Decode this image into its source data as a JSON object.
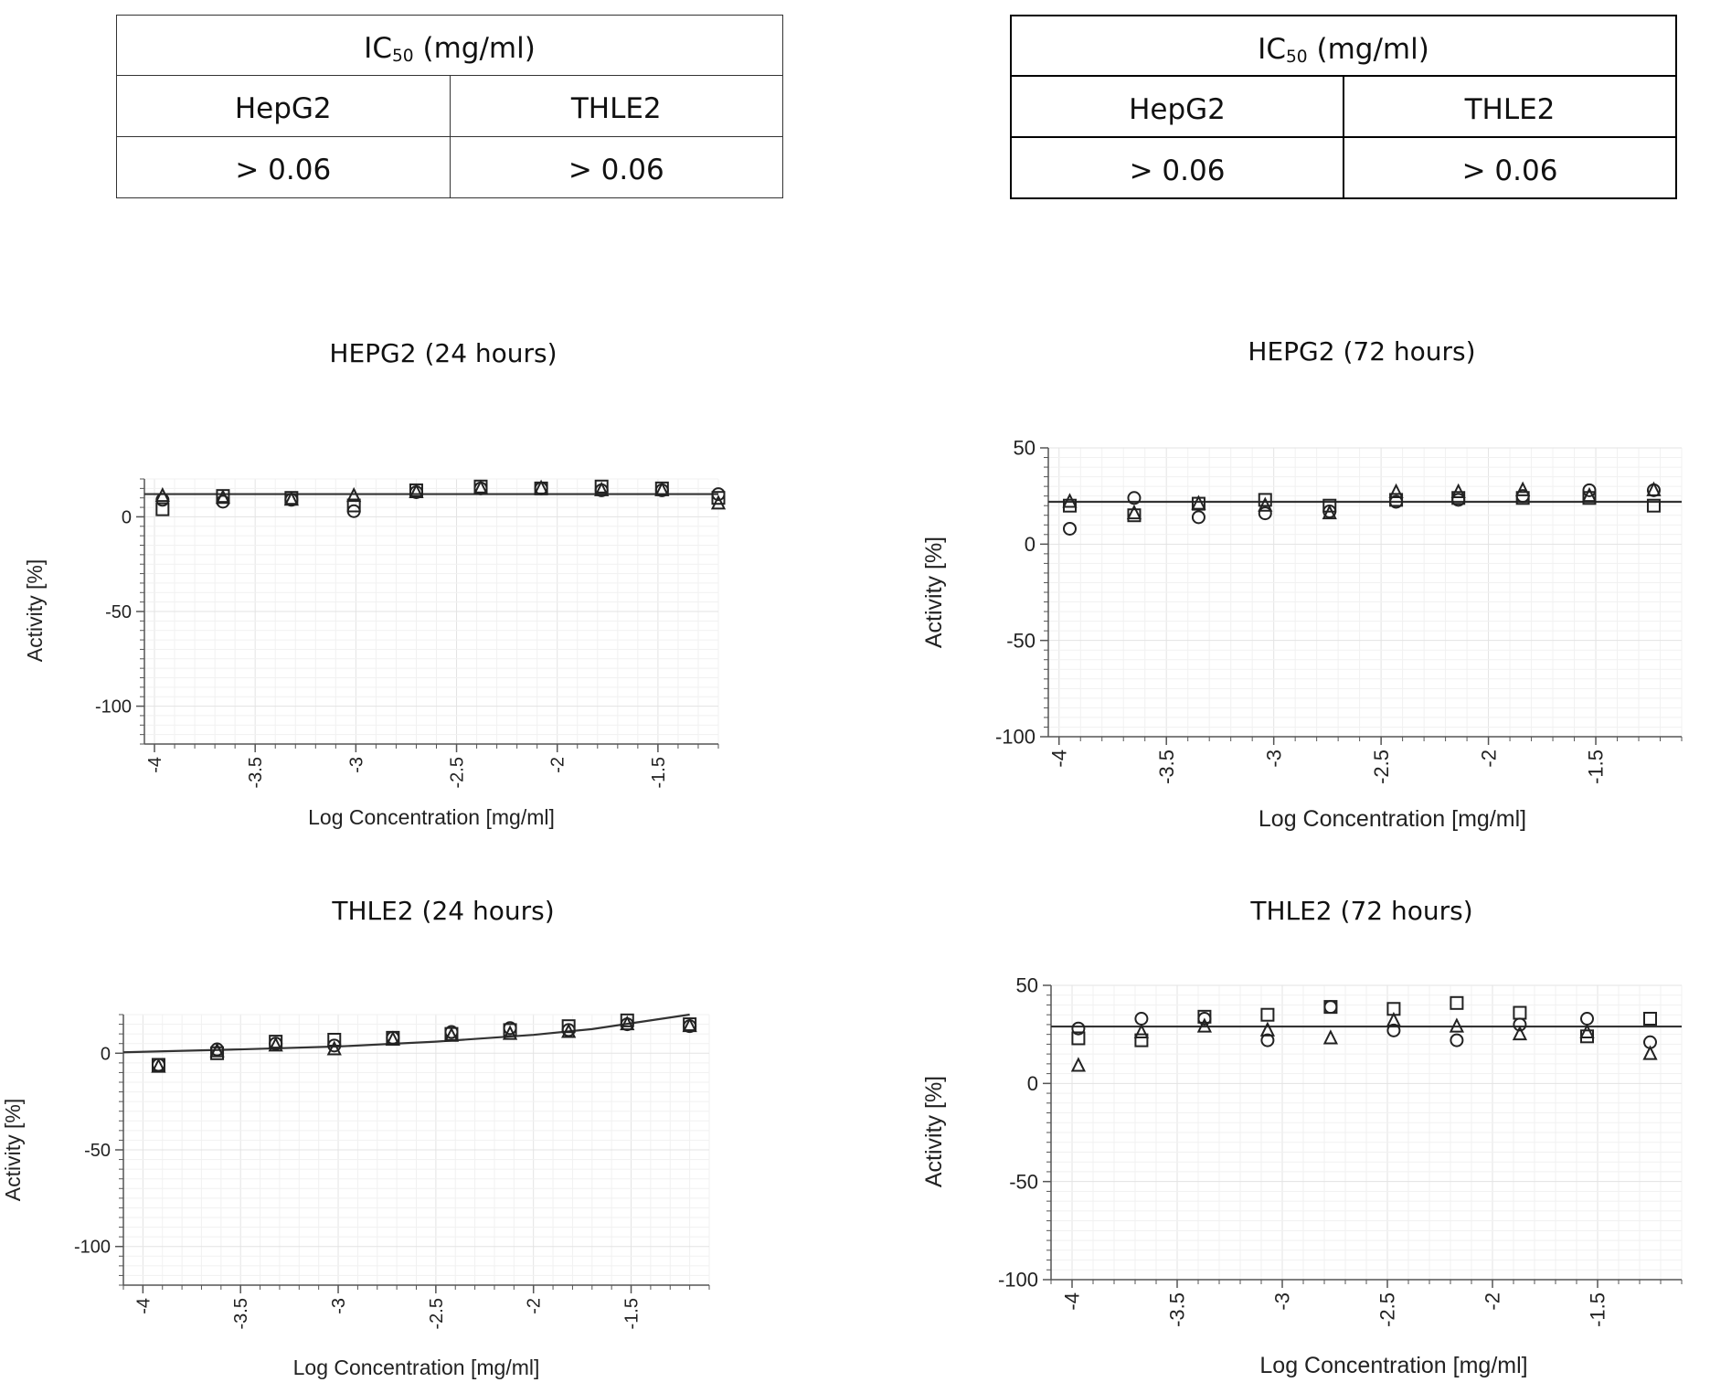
{
  "tables": [
    {
      "title_main": "IC",
      "title_sub": "50",
      "title_unit": " (mg/ml)",
      "headers": [
        "HepG2",
        "THLE2"
      ],
      "values": [
        "> 0.06",
        "> 0.06"
      ]
    },
    {
      "title_main": "IC",
      "title_sub": "50",
      "title_unit": " (mg/ml)",
      "headers": [
        "HepG2",
        "THLE2"
      ],
      "values": [
        "> 0.06",
        "> 0.06"
      ]
    }
  ],
  "chart_data": [
    {
      "type": "scatter",
      "title": "HEPG2 (24 hours)",
      "xlabel": "Log Concentration [mg/ml]",
      "ylabel": "Activity [%]",
      "xlim": [
        -4.05,
        -1.2
      ],
      "ylim": [
        -120,
        20
      ],
      "xticks": [
        "-4",
        "-3.5",
        "-3",
        "-2.5",
        "-2",
        "-1.5"
      ],
      "xtick_values": [
        -4,
        -3.5,
        -3,
        -2.5,
        -2,
        -1.5
      ],
      "yticks": [
        "0",
        "-50",
        "-100"
      ],
      "ytick_values": [
        0,
        -50,
        -100
      ],
      "fit": {
        "kind": "flat",
        "y": [
          12,
          12
        ]
      },
      "series": [
        {
          "name": "circle",
          "x": [
            -3.96,
            -3.66,
            -3.32,
            -3.01,
            -2.7,
            -2.38,
            -2.08,
            -1.78,
            -1.48,
            -1.2
          ],
          "y": [
            9,
            8,
            9,
            3,
            13,
            15,
            15,
            14,
            14,
            12
          ]
        },
        {
          "name": "square",
          "x": [
            -3.96,
            -3.66,
            -3.32,
            -3.01,
            -2.7,
            -2.38,
            -2.08,
            -1.78,
            -1.48,
            -1.2
          ],
          "y": [
            4,
            11,
            10,
            6,
            14,
            16,
            15,
            16,
            15,
            10
          ]
        },
        {
          "name": "triangle",
          "x": [
            -3.96,
            -3.66,
            -3.32,
            -3.01,
            -2.7,
            -2.38,
            -2.08,
            -1.78,
            -1.48,
            -1.2
          ],
          "y": [
            11,
            10,
            9,
            11,
            13,
            15,
            15,
            14,
            14,
            7
          ]
        }
      ]
    },
    {
      "type": "scatter",
      "title": "HEPG2 (72 hours)",
      "xlabel": "Log Concentration [mg/ml]",
      "ylabel": "Activity [%]",
      "xlim": [
        -4.05,
        -1.1
      ],
      "ylim": [
        -100,
        50
      ],
      "xticks": [
        "-4",
        "-3.5",
        "-3",
        "-2.5",
        "-2",
        "-1.5"
      ],
      "xtick_values": [
        -4,
        -3.5,
        -3,
        -2.5,
        -2,
        -1.5
      ],
      "yticks": [
        "50",
        "0",
        "-50",
        "-100"
      ],
      "ytick_values": [
        50,
        0,
        -50,
        -100
      ],
      "fit": {
        "kind": "flat",
        "y": [
          22,
          22
        ]
      },
      "series": [
        {
          "name": "circle",
          "x": [
            -3.95,
            -3.65,
            -3.35,
            -3.04,
            -2.74,
            -2.43,
            -2.14,
            -1.84,
            -1.53,
            -1.23
          ],
          "y": [
            8,
            24,
            14,
            16,
            17,
            22,
            23,
            25,
            28,
            28
          ]
        },
        {
          "name": "square",
          "x": [
            -3.95,
            -3.65,
            -3.35,
            -3.04,
            -2.74,
            -2.43,
            -2.14,
            -1.84,
            -1.53,
            -1.23
          ],
          "y": [
            20,
            15,
            21,
            23,
            20,
            23,
            24,
            24,
            24,
            20
          ]
        },
        {
          "name": "triangle",
          "x": [
            -3.95,
            -3.65,
            -3.35,
            -3.04,
            -2.74,
            -2.43,
            -2.14,
            -1.84,
            -1.53,
            -1.23
          ],
          "y": [
            22,
            16,
            21,
            20,
            16,
            27,
            27,
            28,
            25,
            28
          ]
        }
      ]
    },
    {
      "type": "scatter",
      "title": "THLE2 (24 hours)",
      "xlabel": "Log Concentration [mg/ml]",
      "ylabel": "Activity [%]",
      "xlim": [
        -4.1,
        -1.1
      ],
      "ylim": [
        -120,
        20
      ],
      "xticks": [
        "-4",
        "-3.5",
        "-3",
        "-2.5",
        "-2",
        "-1.5"
      ],
      "xtick_values": [
        -4,
        -3.5,
        -3,
        -2.5,
        -2,
        -1.5
      ],
      "yticks": [
        "0",
        "-50",
        "-100"
      ],
      "ytick_values": [
        0,
        -50,
        -100
      ],
      "fit": {
        "kind": "curve",
        "x": [
          -4.1,
          -3.5,
          -3.0,
          -2.5,
          -2.0,
          -1.7,
          -1.5,
          -1.2
        ],
        "y": [
          0.5,
          2,
          3.5,
          6,
          9.5,
          12.5,
          15.5,
          20
        ]
      },
      "series": [
        {
          "name": "circle",
          "x": [
            -3.92,
            -3.62,
            -3.32,
            -3.02,
            -2.72,
            -2.42,
            -2.12,
            -1.82,
            -1.52,
            -1.2
          ],
          "y": [
            -6,
            2,
            5,
            4,
            8,
            11,
            13,
            12,
            15,
            14
          ]
        },
        {
          "name": "square",
          "x": [
            -3.92,
            -3.62,
            -3.32,
            -3.02,
            -2.72,
            -2.42,
            -2.12,
            -1.82,
            -1.52,
            -1.2
          ],
          "y": [
            -6,
            0,
            6,
            7,
            8,
            10,
            12,
            14,
            17,
            15
          ]
        },
        {
          "name": "triangle",
          "x": [
            -3.92,
            -3.62,
            -3.32,
            -3.02,
            -2.72,
            -2.42,
            -2.12,
            -1.82,
            -1.52,
            -1.2
          ],
          "y": [
            -7,
            1,
            4,
            2,
            7,
            9,
            10,
            11,
            15,
            14
          ]
        }
      ]
    },
    {
      "type": "scatter",
      "title": "THLE2 (72 hours)",
      "xlabel": "Log Concentration [mg/ml]",
      "ylabel": "Activity [%]",
      "xlim": [
        -4.1,
        -1.1
      ],
      "ylim": [
        -100,
        50
      ],
      "xticks": [
        "-4",
        "-3.5",
        "-3",
        "-2.5",
        "-2",
        "-1.5"
      ],
      "xtick_values": [
        -4,
        -3.5,
        -3,
        -2.5,
        -2,
        -1.5
      ],
      "yticks": [
        "50",
        "0",
        "-50",
        "-100"
      ],
      "ytick_values": [
        50,
        0,
        -50,
        -100
      ],
      "fit": {
        "kind": "flat",
        "y": [
          29,
          29
        ]
      },
      "series": [
        {
          "name": "circle",
          "x": [
            -3.97,
            -3.67,
            -3.37,
            -3.07,
            -2.77,
            -2.47,
            -2.17,
            -1.87,
            -1.55,
            -1.25
          ],
          "y": [
            28,
            33,
            33,
            22,
            39,
            27,
            22,
            30,
            33,
            21
          ]
        },
        {
          "name": "square",
          "x": [
            -3.97,
            -3.67,
            -3.37,
            -3.07,
            -2.77,
            -2.47,
            -2.17,
            -1.87,
            -1.55,
            -1.25
          ],
          "y": [
            23,
            22,
            34,
            35,
            39,
            38,
            41,
            36,
            24,
            33
          ]
        },
        {
          "name": "triangle",
          "x": [
            -3.97,
            -3.67,
            -3.37,
            -3.07,
            -2.77,
            -2.47,
            -2.17,
            -1.87,
            -1.55,
            -1.25
          ],
          "y": [
            9,
            26,
            29,
            27,
            23,
            32,
            29,
            25,
            26,
            15
          ]
        }
      ]
    }
  ]
}
